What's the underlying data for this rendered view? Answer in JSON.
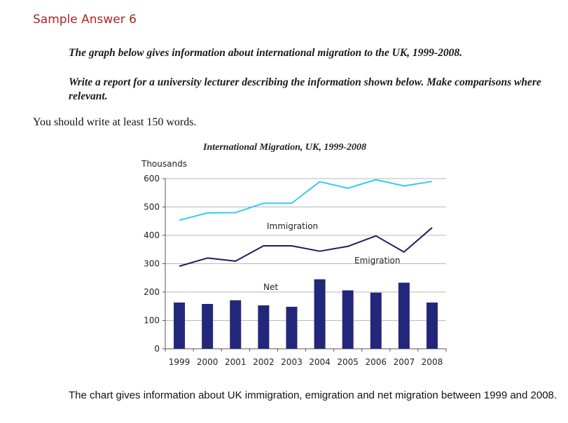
{
  "heading": "Sample Answer 6",
  "prompt": {
    "line1": "The graph below gives information about international migration to the UK, 1999-2008.",
    "line2": "Write a report for a university lecturer describing the information shown below. Make comparisons where relevant."
  },
  "instruction": "You should write at least 150 words.",
  "chart_data": {
    "type": "line",
    "title": "International Migration, UK, 1999-2008",
    "ylabel": "Thousands",
    "xlabel": "",
    "categories": [
      "1999",
      "2000",
      "2001",
      "2002",
      "2003",
      "2004",
      "2005",
      "2006",
      "2007",
      "2008"
    ],
    "ylim": [
      0,
      600
    ],
    "yticks": [
      0,
      100,
      200,
      300,
      400,
      500,
      600
    ],
    "grid": true,
    "series": [
      {
        "name": "Immigration",
        "kind": "line",
        "color": "#33ccee",
        "values": [
          453,
          479,
          480,
          513,
          513,
          589,
          566,
          596,
          574,
          590
        ]
      },
      {
        "name": "Emigration",
        "kind": "line",
        "color": "#1c1f5c",
        "values": [
          291,
          320,
          309,
          363,
          363,
          344,
          361,
          398,
          341,
          427
        ]
      },
      {
        "name": "Net",
        "kind": "bar",
        "color": "#23277a",
        "values": [
          163,
          158,
          171,
          153,
          148,
          245,
          206,
          198,
          233,
          163
        ]
      }
    ]
  },
  "answer_text": "The chart gives information about UK immigration, emigration and net migration between 1999 and 2008."
}
